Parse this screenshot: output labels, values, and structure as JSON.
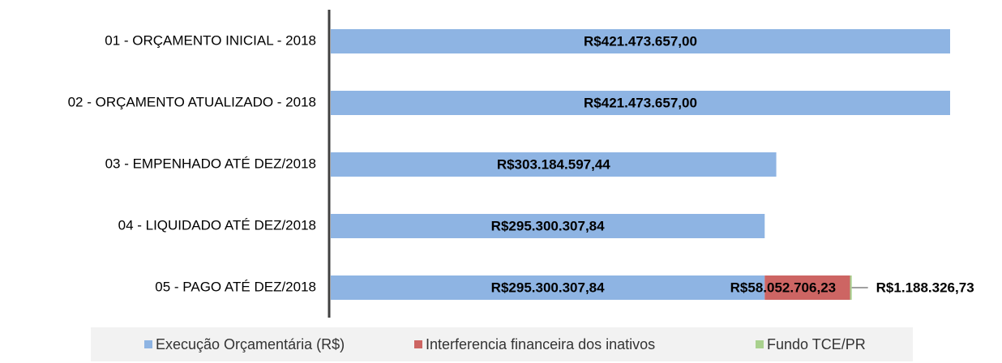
{
  "chart_data": {
    "type": "stacked_barh",
    "categories": [
      "01 - ORÇAMENTO INICIAL - 2018",
      "02 - ORÇAMENTO ATUALIZADO - 2018",
      "03 - EMPENHADO ATÉ DEZ/2018",
      "04 - LIQUIDADO  ATÉ DEZ/2018",
      "05 - PAGO ATÉ DEZ/2018"
    ],
    "series": [
      {
        "name": "Execução Orçamentária (R$)",
        "color": "#8eb4e3",
        "values": [
          421473657.0,
          421473657.0,
          303184597.44,
          295300307.84,
          295300307.84
        ],
        "value_labels": [
          "R$421.473.657,00",
          "R$421.473.657,00",
          "R$303.184.597,44",
          "R$295.300.307,84",
          "R$295.300.307,84"
        ]
      },
      {
        "name": "Interferencia financeira dos inativos",
        "color": "#cd6563",
        "values": [
          null,
          null,
          null,
          null,
          58052706.23
        ],
        "value_labels": [
          null,
          null,
          null,
          null,
          "R$58.052.706,23"
        ]
      },
      {
        "name": "Fundo TCE/PR",
        "color": "#a9d18e",
        "values": [
          null,
          null,
          null,
          null,
          1188326.73
        ],
        "value_labels": [
          null,
          null,
          null,
          null,
          "R$1.188.326,73"
        ]
      }
    ],
    "xlim": [
      0,
      450000000
    ],
    "legend": "bottom"
  }
}
